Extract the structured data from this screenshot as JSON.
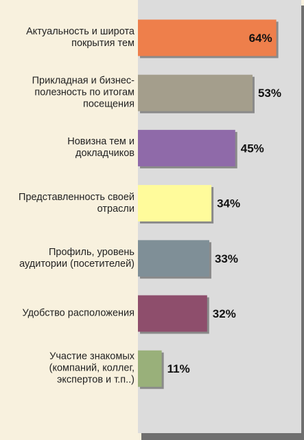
{
  "chart_data": {
    "type": "bar",
    "orientation": "horizontal",
    "categories": [
      "Актуальность и широта\nпокрытия тем",
      "Прикладная и бизнес-\nполезность по итогам\nпосещения",
      "Новизна тем и\nдокладчиков",
      "Представленность своей\nотрасли",
      "Профиль, уровень\nаудитории (посетителей)",
      "Удобство расположения",
      "Участие знакомых\n(компаний, коллег,\nэкспертов и т.п..)"
    ],
    "values": [
      64,
      53,
      45,
      34,
      33,
      32,
      11
    ],
    "value_labels": [
      "64%",
      "53%",
      "45%",
      "34%",
      "33%",
      "32%",
      "11%"
    ],
    "bar_colors": [
      "#ee7f4b",
      "#a49e8c",
      "#8f6aa9",
      "#fffb9b",
      "#7f8f97",
      "#8e4e6c",
      "#99b07a"
    ],
    "plot_background": "#dcdcdc",
    "page_background": "#f8f1de",
    "xlim": [
      0,
      100
    ],
    "grid": false,
    "legend": "none",
    "title": "",
    "xlabel": "",
    "ylabel": ""
  }
}
